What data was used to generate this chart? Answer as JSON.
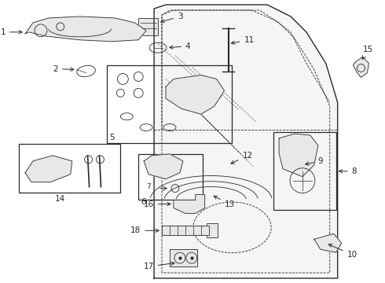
{
  "bg_color": "#ffffff",
  "line_color": "#2a2a2a",
  "fill_color": "#e8e8e8",
  "font_size": 7.5,
  "lw_main": 1.0,
  "lw_thin": 0.6,
  "lw_dash": 0.6
}
